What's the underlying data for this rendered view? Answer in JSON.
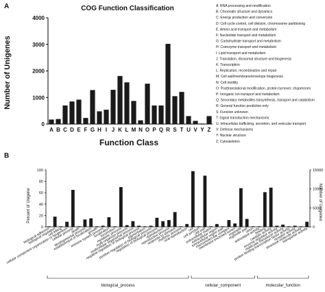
{
  "panels": {
    "a": "A",
    "b": "B"
  },
  "chart_data": [
    {
      "type": "bar",
      "title": "COG Function Classification",
      "xlabel": "Function Class",
      "ylabel": "Number of Unigenes",
      "ylim": [
        0,
        4000
      ],
      "yticks": [
        "0",
        "1000",
        "2000",
        "3000",
        "4000"
      ],
      "categories": [
        "A",
        "B",
        "C",
        "D",
        "E",
        "F",
        "G",
        "H",
        "I",
        "J",
        "K",
        "L",
        "M",
        "N",
        "O",
        "P",
        "Q",
        "R",
        "S",
        "T",
        "U",
        "V",
        "Y",
        "Z"
      ],
      "values": [
        170,
        190,
        700,
        850,
        920,
        230,
        1280,
        480,
        540,
        1290,
        1810,
        1570,
        870,
        140,
        1520,
        700,
        700,
        3020,
        1050,
        1210,
        300,
        120,
        20,
        300
      ],
      "legend": [
        "A: RNA processing and modification",
        "B: Chromatin structure and dynamics",
        "C: Energy production and conversion",
        "D: Cell cycle control, cell division, chromosome partitioning",
        "E: Amino acid transport and metabolism",
        "F: Nucleotide transport and metabolism",
        "G: Carbohydrate transport and metabolism",
        "H: Coenzyme transport and metabolism",
        "I: Lipid transport and metabolism",
        "J: Translation, ribosomal structure and biogenesis",
        "K: Transcription",
        "L: Replication, recombination and repair",
        "M: Cell wall/membrane/envelope biogenesis",
        "N: Cell motility",
        "O: Posttranslational modification, protein turnover, chaperones",
        "P: Inorganic ion transport and metabolism",
        "Q: Secondary metabolites biosynthesis, transport and catabolism",
        "R: General function prediction only",
        "S: Function unknown",
        "T: Signal transduction mechanisms",
        "U: Intracellular trafficking, secretion, and vesicular transport",
        "V: Defense mechanisms",
        "Y: Nuclear structure",
        "Z: Cytoskeleton"
      ]
    },
    {
      "type": "bar",
      "ylabel": "Percent of Unigene",
      "y2label": "Number of Unigenes",
      "ylim": [
        0,
        100
      ],
      "yticks": [
        "0",
        "20",
        "40",
        "60",
        "80",
        "100"
      ],
      "y2ticks": [
        "0",
        "5000",
        "10000",
        "15000"
      ],
      "categories": [
        "biological adhesion",
        "biological regulation",
        "cell killing",
        "cellular component organization or biogenesis",
        "cellular process",
        "death",
        "developmental process",
        "establishment of localization",
        "growth",
        "immune system process",
        "localization",
        "locomotion",
        "metabolic process",
        "multi-organism process",
        "multicellular organismal process",
        "negative regulation of biological process",
        "pigmentation",
        "positive regulation of biological process",
        "regulation of biological process",
        "reproduction",
        "reproductive process",
        "response to stimulus",
        "rhythmic process",
        "viral reproduction",
        "cell",
        "cell junction",
        "cell part",
        "extracellular matrix",
        "extracellular region",
        "extracellular region part",
        "macromolecular complex",
        "membrane-enclosed lumen",
        "organelle",
        "organelle part",
        "virion",
        "antioxidant activity",
        "binding",
        "catalytic activity",
        "enzyme regulator activity",
        "molecular transducer activity",
        "protein binding transcription factor activity",
        "receptor activity",
        "structural molecule activity",
        "transporter activity"
      ],
      "values": [
        1,
        18,
        1,
        9,
        65,
        1,
        13,
        15,
        1,
        2,
        17,
        1,
        70,
        3,
        10,
        2,
        1,
        2,
        16,
        10,
        12,
        26,
        1,
        5,
        98,
        1,
        90,
        1,
        5,
        1,
        12,
        6,
        68,
        14,
        1,
        1,
        61,
        69,
        2,
        4,
        1,
        2,
        1,
        9
      ],
      "groups": [
        {
          "label": "biological_process",
          "count": 24
        },
        {
          "label": "cellular_component",
          "count": 11
        },
        {
          "label": "molecular_function",
          "count": 9
        }
      ]
    }
  ]
}
